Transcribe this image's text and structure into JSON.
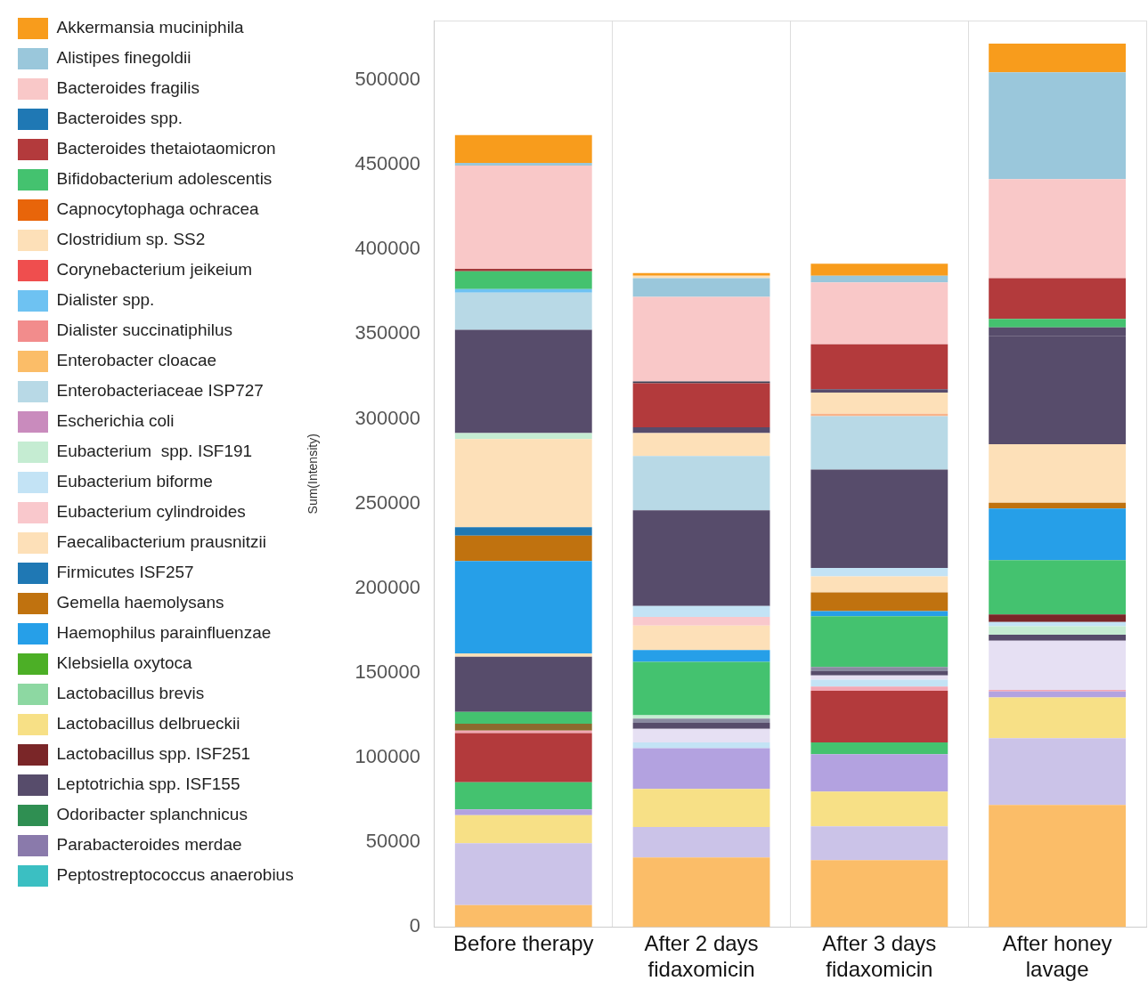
{
  "chart_data": {
    "type": "bar",
    "stacked": true,
    "ylabel": "Sum(Intensity)",
    "categories": [
      "Before therapy",
      "After 2 days fidaxomicin",
      "After 3 days fidaxomicin",
      "After honey lavage"
    ],
    "ylim": [
      0,
      535000
    ],
    "yticks": [
      0,
      50000,
      100000,
      150000,
      200000,
      250000,
      300000,
      350000,
      400000,
      450000,
      500000
    ],
    "grid": "x",
    "legend": "left",
    "series": [
      {
        "name": "Enterobacter cloacae",
        "color": "#fbbd68",
        "values": [
          13000,
          41000,
          39500,
          72000
        ]
      },
      {
        "color": "#cbc3e8",
        "values": [
          36500,
          18000,
          20000,
          39500
        ]
      },
      {
        "name": "Lactobacillus delbrueckii",
        "color": "#f7e086",
        "values": [
          16500,
          22500,
          20500,
          24000
        ]
      },
      {
        "color": "#b3a2e0",
        "values": [
          3500,
          24000,
          22000,
          3500
        ]
      },
      {
        "color": "#44c26f",
        "values": [
          16000,
          null,
          7000,
          null
        ]
      },
      {
        "color": "#b33a3c",
        "values": [
          29000,
          null,
          30500,
          null
        ]
      },
      {
        "color": "#f2a7b3",
        "values": [
          1500,
          null,
          2500,
          1000
        ]
      },
      {
        "color": "#8b6a2e",
        "values": [
          4000,
          null,
          null,
          null
        ]
      },
      {
        "color": "#c3e3f5",
        "values": [
          null,
          3500,
          4000,
          null
        ]
      },
      {
        "color": "#e6e0f3",
        "values": [
          null,
          8000,
          2500,
          29000
        ]
      },
      {
        "color": "#574c6b",
        "values": [
          null,
          3500,
          2500,
          3500
        ]
      },
      {
        "color": "#8a8aa0",
        "values": [
          null,
          2500,
          2500,
          null
        ]
      },
      {
        "color": "#c5ecd2",
        "values": [
          null,
          2000,
          null,
          5000
        ]
      },
      {
        "color": "#c3e3f5",
        "values": [
          null,
          null,
          null,
          2500
        ]
      },
      {
        "name": "Lactobacillus spp. ISF251",
        "color": "#7a2628",
        "values": [
          null,
          null,
          null,
          4500
        ]
      },
      {
        "name": "Bifidobacterium adolescentis",
        "color": "#44c26f",
        "values": [
          7000,
          31500,
          30000,
          32000
        ]
      },
      {
        "color": "#574c6b",
        "values": [
          32500,
          null,
          null,
          null
        ]
      },
      {
        "color": "#fde0b8",
        "values": [
          2000,
          null,
          null,
          null
        ]
      },
      {
        "name": "Haemophilus parainfluenzae",
        "color": "#269fe8",
        "values": [
          54500,
          7000,
          3000,
          30500
        ]
      },
      {
        "name": "Gemella haemolysans",
        "color": "#c0720f",
        "values": [
          15000,
          null,
          11000,
          3500
        ]
      },
      {
        "name": "Firmicutes ISF257",
        "color": "#1f78b4",
        "values": [
          5000,
          null,
          null,
          null
        ]
      },
      {
        "name": "Faecalibacterium prausnitzii",
        "color": "#fde0b8",
        "values": [
          52000,
          14500,
          9500,
          34500
        ]
      },
      {
        "name": "Eubacterium cylindroides",
        "color": "#f9c8cc",
        "values": [
          null,
          5000,
          null,
          null
        ]
      },
      {
        "name": "Eubacterium  spp. ISF191",
        "color": "#c5ecd2",
        "values": [
          3500,
          null,
          null,
          null
        ]
      },
      {
        "name": "Eubacterium biforme",
        "color": "#c3e3f5",
        "values": [
          null,
          6500,
          5000,
          null
        ]
      },
      {
        "name": "Leptotrichia spp. ISF155",
        "color": "#574c6b",
        "values": [
          61000,
          56500,
          58000,
          64000
        ]
      },
      {
        "color": "#574c6b",
        "values": [
          null,
          null,
          null,
          5000
        ]
      },
      {
        "color": "#44c26f",
        "values": [
          null,
          null,
          null,
          5000
        ]
      },
      {
        "name": "Enterobacteriaceae ISP727",
        "color": "#b8d9e6",
        "values": [
          22000,
          32000,
          31500,
          null
        ]
      },
      {
        "name": "Dialister spp.",
        "color": "#6ec2f2",
        "values": [
          2000,
          null,
          null,
          null
        ]
      },
      {
        "color": "#f9b48a",
        "values": [
          null,
          null,
          1500,
          null
        ]
      },
      {
        "name": "Clostridium sp. SS2",
        "color": "#fde0b8",
        "values": [
          null,
          13500,
          12500,
          null
        ]
      },
      {
        "color": "#44c26f",
        "values": [
          10500,
          null,
          null,
          null
        ]
      },
      {
        "color": "#574c6b",
        "values": [
          null,
          3500,
          2000,
          null
        ]
      },
      {
        "color": "#a03a3a",
        "values": [
          1500,
          null,
          null,
          null
        ]
      },
      {
        "name": "Bacteroides thetaiotaomicron",
        "color": "#b33a3c",
        "values": [
          null,
          26000,
          26500,
          24000
        ]
      },
      {
        "color": "#3e3e52",
        "values": [
          null,
          1000,
          null,
          null
        ]
      },
      {
        "name": "Bacteroides fragilis",
        "color": "#f9c8c8",
        "values": [
          61000,
          50000,
          36500,
          58500
        ]
      },
      {
        "name": "Alistipes finegoldii",
        "color": "#9ac7db",
        "values": [
          1500,
          11000,
          4000,
          63000
        ]
      },
      {
        "color": "#fde0b8",
        "values": [
          null,
          1500,
          null,
          null
        ]
      },
      {
        "name": "Akkermansia muciniphila",
        "color": "#f89c1c",
        "values": [
          16500,
          1500,
          7000,
          17000
        ]
      },
      {
        "name": "Bacteroides spp.",
        "color": "#1f78b4",
        "values": [
          null,
          null,
          null,
          null
        ]
      },
      {
        "name": "Capnocytophaga ochracea",
        "color": "#e8650a",
        "values": [
          null,
          null,
          null,
          null
        ]
      },
      {
        "name": "Corynebacterium jeikeium",
        "color": "#ef4e4e",
        "values": [
          null,
          null,
          null,
          null
        ]
      },
      {
        "name": "Dialister succinatiphilus",
        "color": "#f28c8c",
        "values": [
          null,
          null,
          null,
          null
        ]
      },
      {
        "name": "Escherichia coli",
        "color": "#c98bbd",
        "values": [
          null,
          null,
          null,
          null
        ]
      },
      {
        "name": "Klebsiella oxytoca",
        "color": "#4caf26",
        "values": [
          null,
          null,
          null,
          null
        ]
      },
      {
        "name": "Lactobacillus brevis",
        "color": "#8dd8a2",
        "values": [
          null,
          null,
          null,
          null
        ]
      },
      {
        "name": "Odoribacter splanchnicus",
        "color": "#2f8f52",
        "values": [
          null,
          null,
          null,
          null
        ]
      },
      {
        "name": "Parabacteroides merdae",
        "color": "#8a7aab",
        "values": [
          null,
          null,
          null,
          null
        ]
      },
      {
        "name": "Peptostreptococcus anaerobius",
        "color": "#3bbfc2",
        "values": [
          null,
          null,
          null,
          null
        ]
      }
    ]
  }
}
